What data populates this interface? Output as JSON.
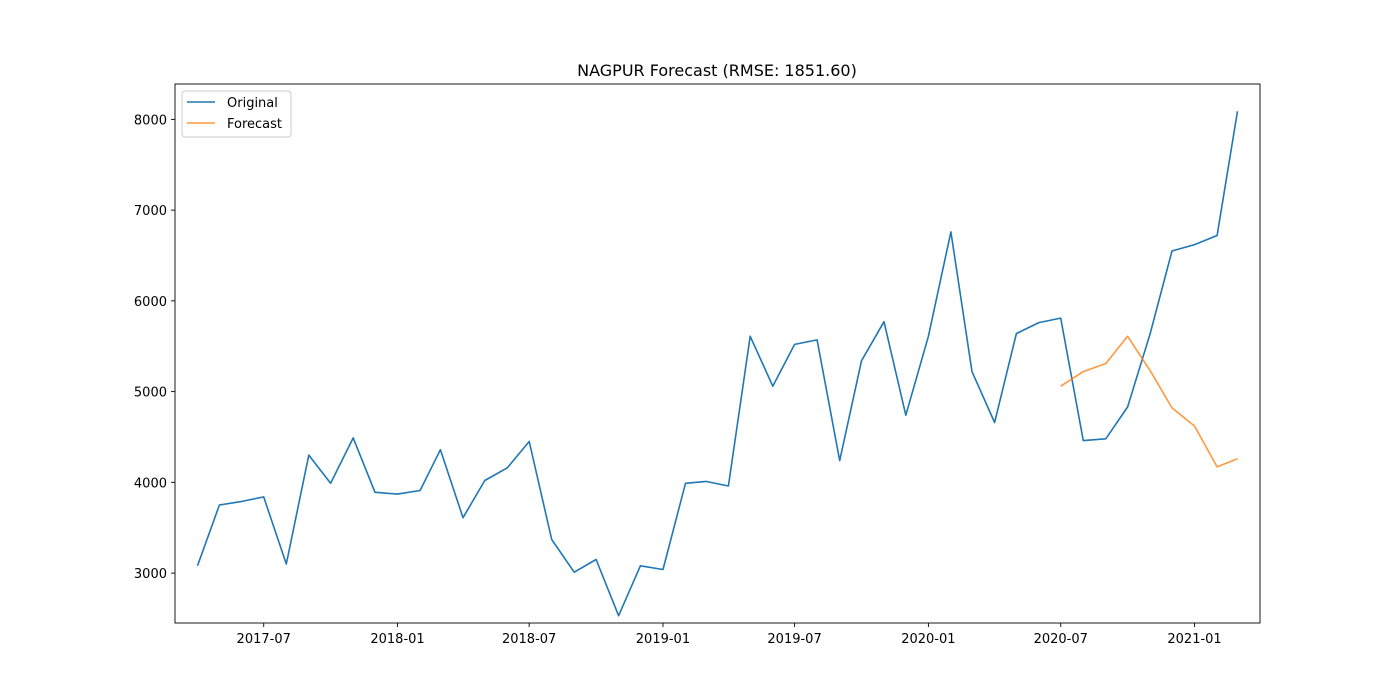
{
  "chart_data": {
    "type": "line",
    "title": "NAGPUR Forecast (RMSE: 1851.60)",
    "xlabel": "",
    "ylabel": "",
    "xlim": [
      "2017-03-01",
      "2021-04-01"
    ],
    "ylim": [
      2450,
      8390
    ],
    "x_ticks": [
      "2017-07",
      "2018-01",
      "2018-07",
      "2019-01",
      "2019-07",
      "2020-01",
      "2020-07",
      "2021-01"
    ],
    "y_ticks": [
      3000,
      4000,
      5000,
      6000,
      7000,
      8000
    ],
    "grid": false,
    "legend_position": "top-left",
    "colors": {
      "original": "#1f77b4",
      "forecast": "#ff7f0e"
    },
    "series": [
      {
        "name": "Original",
        "x": [
          "2017-04-01",
          "2017-05-01",
          "2017-06-01",
          "2017-07-01",
          "2017-08-01",
          "2017-09-01",
          "2017-10-01",
          "2017-11-01",
          "2017-12-01",
          "2018-01-01",
          "2018-02-01",
          "2018-03-01",
          "2018-04-01",
          "2018-05-01",
          "2018-06-01",
          "2018-07-01",
          "2018-08-01",
          "2018-09-01",
          "2018-10-01",
          "2018-11-01",
          "2018-12-01",
          "2019-01-01",
          "2019-02-01",
          "2019-03-01",
          "2019-04-01",
          "2019-05-01",
          "2019-06-01",
          "2019-07-01",
          "2019-08-01",
          "2019-09-01",
          "2019-10-01",
          "2019-11-01",
          "2019-12-01",
          "2020-01-01",
          "2020-02-01",
          "2020-03-01",
          "2020-04-01",
          "2020-05-01",
          "2020-06-01",
          "2020-07-01",
          "2020-08-01",
          "2020-09-01",
          "2020-10-01",
          "2020-11-01",
          "2020-12-01",
          "2021-01-01",
          "2021-02-01",
          "2021-03-01"
        ],
        "values": [
          3080,
          3750,
          3790,
          3840,
          3100,
          4300,
          3990,
          4490,
          3890,
          3870,
          3910,
          4360,
          3610,
          4020,
          4160,
          4450,
          3370,
          3010,
          3150,
          2530,
          3080,
          3040,
          3990,
          4010,
          3960,
          5610,
          5060,
          5520,
          5570,
          4240,
          5340,
          5770,
          4740,
          5610,
          6760,
          5220,
          4660,
          5640,
          5760,
          5810,
          4460,
          4480,
          4830,
          5640,
          6550,
          6620,
          6720,
          8090
        ]
      },
      {
        "name": "Forecast",
        "x": [
          "2020-07-01",
          "2020-08-01",
          "2020-09-01",
          "2020-10-01",
          "2020-11-01",
          "2020-12-01",
          "2021-01-01",
          "2021-02-01",
          "2021-03-01"
        ],
        "values": [
          5060,
          5220,
          5310,
          5610,
          5230,
          4820,
          4620,
          4170,
          4260
        ]
      }
    ]
  }
}
